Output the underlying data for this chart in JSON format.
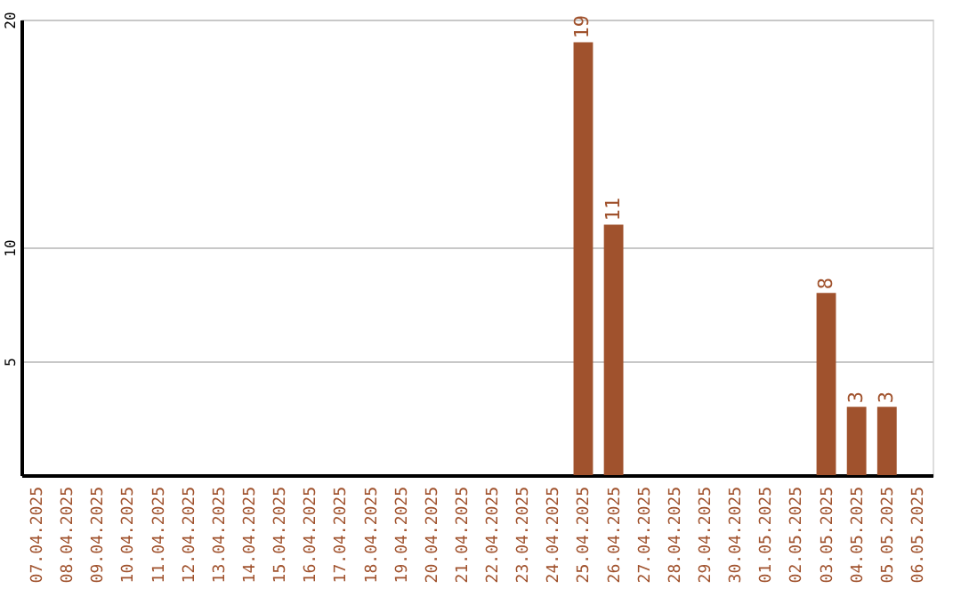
{
  "chart_data": {
    "type": "bar",
    "categories": [
      "07.04.2025",
      "08.04.2025",
      "09.04.2025",
      "10.04.2025",
      "11.04.2025",
      "12.04.2025",
      "13.04.2025",
      "14.04.2025",
      "15.04.2025",
      "16.04.2025",
      "17.04.2025",
      "18.04.2025",
      "19.04.2025",
      "20.04.2025",
      "21.04.2025",
      "22.04.2025",
      "23.04.2025",
      "24.04.2025",
      "25.04.2025",
      "26.04.2025",
      "27.04.2025",
      "28.04.2025",
      "29.04.2025",
      "30.04.2025",
      "01.05.2025",
      "02.05.2025",
      "03.05.2025",
      "04.05.2025",
      "05.05.2025",
      "06.05.2025"
    ],
    "values": [
      0,
      0,
      0,
      0,
      0,
      0,
      0,
      0,
      0,
      0,
      0,
      0,
      0,
      0,
      0,
      0,
      0,
      0,
      19,
      11,
      0,
      0,
      0,
      0,
      0,
      0,
      8,
      3,
      3,
      0
    ],
    "value_labels": [
      null,
      null,
      null,
      null,
      null,
      null,
      null,
      null,
      null,
      null,
      null,
      null,
      null,
      null,
      null,
      null,
      null,
      null,
      "19",
      "11",
      null,
      null,
      null,
      null,
      null,
      null,
      "8",
      "3",
      "3",
      null
    ],
    "color": "#a0522d",
    "ylim": [
      0,
      20
    ],
    "yticks": [
      5,
      10,
      20
    ],
    "grid": "y"
  }
}
